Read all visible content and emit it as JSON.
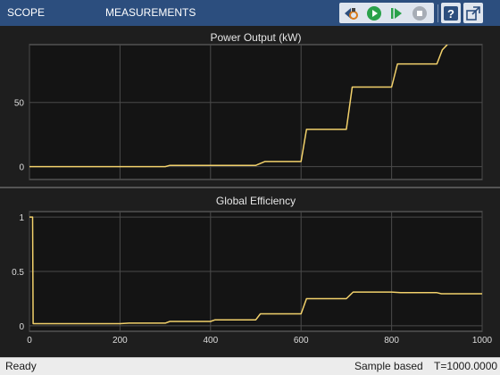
{
  "toolbar": {
    "tabs": [
      {
        "label": "SCOPE"
      },
      {
        "label": "MEASUREMENTS"
      }
    ],
    "buttons": [
      {
        "icon": "step-back-icon"
      },
      {
        "icon": "run-icon"
      },
      {
        "icon": "step-forward-icon"
      },
      {
        "icon": "stop-icon"
      },
      {
        "icon": "help-icon"
      },
      {
        "icon": "undock-icon"
      }
    ]
  },
  "colors": {
    "toolbar": "#2c4e7e",
    "plot_background": "#141414",
    "line": "#f2d16b",
    "grid": "#4a4a4a"
  },
  "chart_data": [
    {
      "type": "line",
      "title": "Power Output (kW)",
      "xlim": [
        0,
        1000
      ],
      "ylim": [
        -10,
        95
      ],
      "yticks": [
        0,
        50
      ],
      "grid": true,
      "x": [
        0,
        300,
        310,
        500,
        520,
        600,
        612,
        700,
        713,
        800,
        813,
        900,
        912,
        923
      ],
      "values": [
        0,
        0,
        1,
        1,
        4,
        4,
        29,
        29,
        62,
        62,
        80,
        80,
        91,
        95
      ]
    },
    {
      "type": "line",
      "title": "Global Efficiency",
      "xlim": [
        0,
        1000
      ],
      "xticks": [
        0,
        200,
        400,
        600,
        800,
        1000
      ],
      "ylim": [
        -0.05,
        1.05
      ],
      "yticks": [
        0,
        0.5,
        1
      ],
      "grid": true,
      "x": [
        0,
        0.5,
        7,
        8,
        200,
        220,
        300,
        310,
        400,
        410,
        500,
        510,
        600,
        612,
        700,
        715,
        800,
        820,
        900,
        910,
        1000
      ],
      "values": [
        1,
        1,
        1,
        0.02,
        0.02,
        0.025,
        0.025,
        0.04,
        0.04,
        0.055,
        0.055,
        0.11,
        0.11,
        0.25,
        0.25,
        0.31,
        0.31,
        0.305,
        0.305,
        0.295,
        0.295
      ]
    }
  ],
  "status": {
    "left": "Ready",
    "mode": "Sample based",
    "time": "T=1000.0000"
  }
}
